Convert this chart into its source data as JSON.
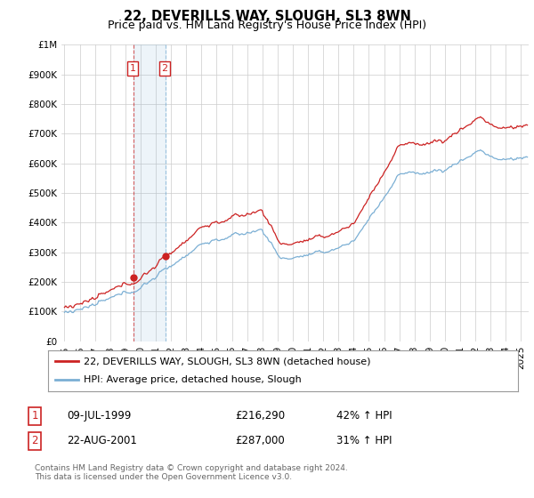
{
  "title": "22, DEVERILLS WAY, SLOUGH, SL3 8WN",
  "subtitle": "Price paid vs. HM Land Registry's House Price Index (HPI)",
  "ylabel_ticks": [
    "£0",
    "£100K",
    "£200K",
    "£300K",
    "£400K",
    "£500K",
    "£600K",
    "£700K",
    "£800K",
    "£900K",
    "£1M"
  ],
  "ytick_values": [
    0,
    100000,
    200000,
    300000,
    400000,
    500000,
    600000,
    700000,
    800000,
    900000,
    1000000
  ],
  "ylim": [
    0,
    1000000
  ],
  "xlim_start": 1994.8,
  "xlim_end": 2025.5,
  "hpi_color": "#7bafd4",
  "price_color": "#cc2222",
  "purchase1_date": 1999.52,
  "purchase1_price": 216290,
  "purchase2_date": 2001.64,
  "purchase2_price": 287000,
  "legend_label1": "22, DEVERILLS WAY, SLOUGH, SL3 8WN (detached house)",
  "legend_label2": "HPI: Average price, detached house, Slough",
  "table_row1": [
    "1",
    "09-JUL-1999",
    "£216,290",
    "42% ↑ HPI"
  ],
  "table_row2": [
    "2",
    "22-AUG-2001",
    "£287,000",
    "31% ↑ HPI"
  ],
  "footnote": "Contains HM Land Registry data © Crown copyright and database right 2024.\nThis data is licensed under the Open Government Licence v3.0.",
  "background_color": "#ffffff",
  "grid_color": "#cccccc",
  "title_fontsize": 10.5,
  "subtitle_fontsize": 9,
  "tick_fontsize": 7.5
}
